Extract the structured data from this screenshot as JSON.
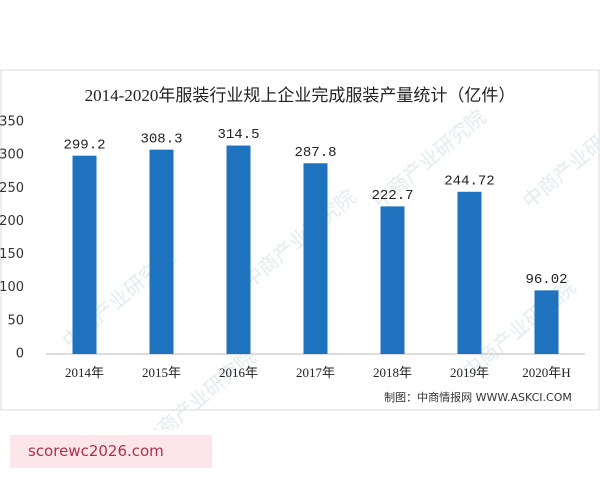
{
  "chart_data": {
    "type": "bar",
    "title": "2014-2020年服装行业规上企业完成服装产量统计（亿件）",
    "categories": [
      "2014年",
      "2015年",
      "2016年",
      "2017年",
      "2018年",
      "2019年",
      "2020年H"
    ],
    "values": [
      299.2,
      308.3,
      314.5,
      287.8,
      222.7,
      244.72,
      96.02
    ],
    "color": "#1f72be",
    "ylim": [
      0,
      350
    ],
    "yticks": [
      0,
      50,
      100,
      150,
      200,
      250,
      300,
      350
    ],
    "grid": false,
    "source": "制图：中商情报网 WWW.ASKCI.COM",
    "watermark": "中商产业研究院"
  },
  "badge": "scorewc2026.com"
}
